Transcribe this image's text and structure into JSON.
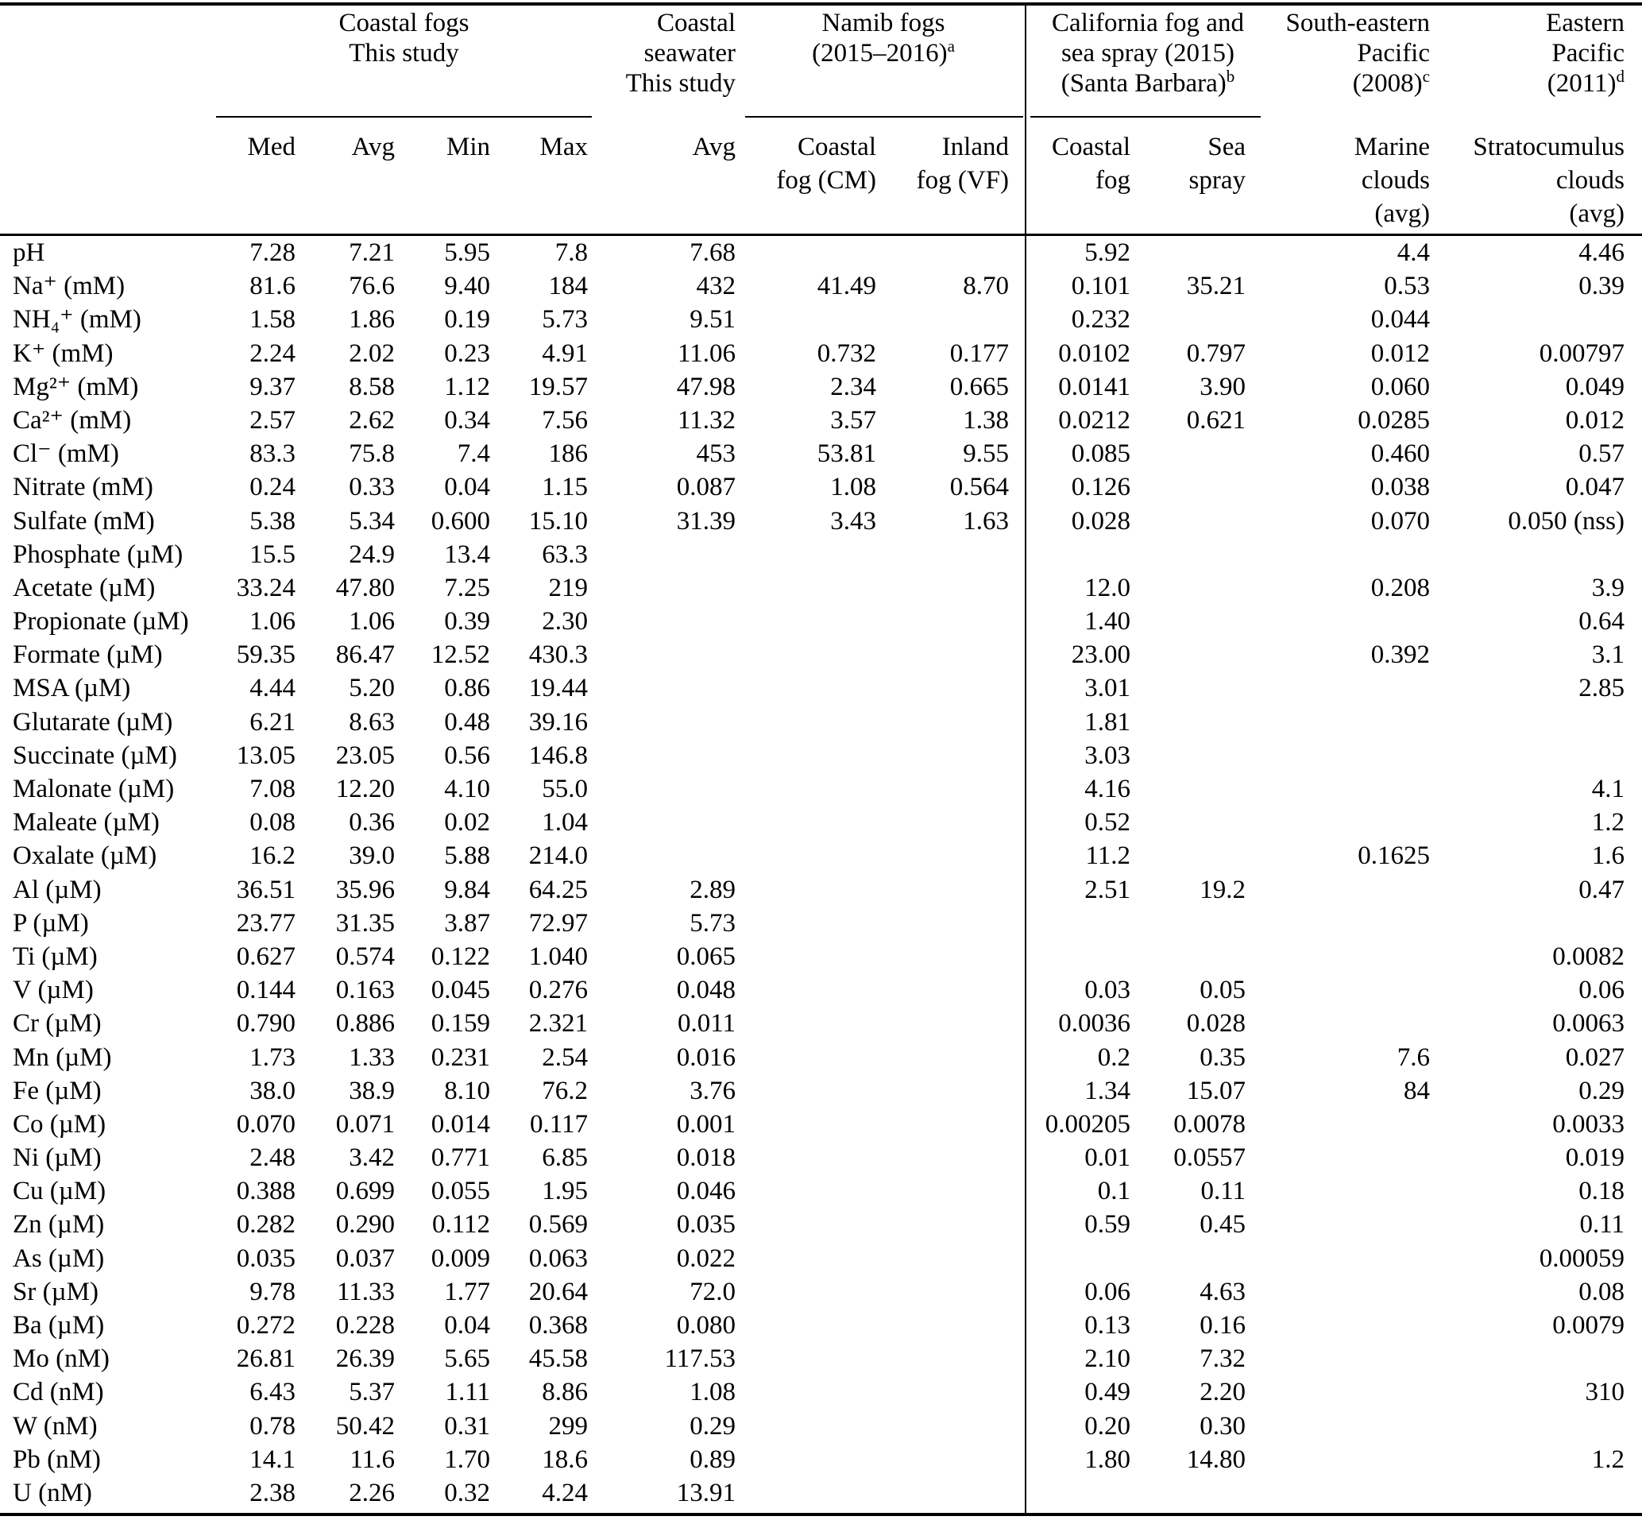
{
  "table": {
    "col_groups": [
      {
        "title": "Coastal fogs\nThis study",
        "mark": ""
      },
      {
        "title": "Coastal\nseawater\nThis study",
        "mark": ""
      },
      {
        "title": "Namib fogs\n(2015–2016)",
        "mark": "a"
      },
      {
        "title": "California fog and\nsea spray (2015)\n(Santa Barbara)",
        "mark": "b"
      },
      {
        "title": "South-eastern\nPacific\n(2008)",
        "mark": "c"
      },
      {
        "title": "Eastern\nPacific\n(2011)",
        "mark": "d"
      }
    ],
    "sub_headers": [
      "Med",
      "Avg",
      "Min",
      "Max",
      "Avg",
      "Coastal\nfog (CM)",
      "Inland\nfog (VF)",
      "Coastal\nfog",
      "Sea\nspray",
      "Marine\nclouds\n(avg)",
      "Stratocumulus\nclouds\n(avg)"
    ],
    "rows": [
      {
        "label": "pH",
        "cells": [
          "7.28",
          "7.21",
          "5.95",
          "7.8",
          "7.68",
          "",
          "",
          "5.92",
          "",
          "4.4",
          "4.46"
        ]
      },
      {
        "label": "Na⁺ (mM)",
        "cells": [
          "81.6",
          "76.6",
          "9.40",
          "184",
          "432",
          "41.49",
          "8.70",
          "0.101",
          "35.21",
          "0.53",
          "0.39"
        ]
      },
      {
        "label": "NH₄⁺ (mM)",
        "cells": [
          "1.58",
          "1.86",
          "0.19",
          "5.73",
          "9.51",
          "",
          "",
          "0.232",
          "",
          "0.044",
          ""
        ]
      },
      {
        "label": "K⁺ (mM)",
        "cells": [
          "2.24",
          "2.02",
          "0.23",
          "4.91",
          "11.06",
          "0.732",
          "0.177",
          "0.0102",
          "0.797",
          "0.012",
          "0.00797"
        ]
      },
      {
        "label": "Mg²⁺ (mM)",
        "cells": [
          "9.37",
          "8.58",
          "1.12",
          "19.57",
          "47.98",
          "2.34",
          "0.665",
          "0.0141",
          "3.90",
          "0.060",
          "0.049"
        ]
      },
      {
        "label": "Ca²⁺ (mM)",
        "cells": [
          "2.57",
          "2.62",
          "0.34",
          "7.56",
          "11.32",
          "3.57",
          "1.38",
          "0.0212",
          "0.621",
          "0.0285",
          "0.012"
        ]
      },
      {
        "label": "Cl⁻ (mM)",
        "cells": [
          "83.3",
          "75.8",
          "7.4",
          "186",
          "453",
          "53.81",
          "9.55",
          "0.085",
          "",
          "0.460",
          "0.57"
        ]
      },
      {
        "label": "Nitrate (mM)",
        "cells": [
          "0.24",
          "0.33",
          "0.04",
          "1.15",
          "0.087",
          "1.08",
          "0.564",
          "0.126",
          "",
          "0.038",
          "0.047"
        ]
      },
      {
        "label": "Sulfate (mM)",
        "cells": [
          "5.38",
          "5.34",
          "0.600",
          "15.10",
          "31.39",
          "3.43",
          "1.63",
          "0.028",
          "",
          "0.070",
          "0.050 (nss)"
        ]
      },
      {
        "label": "Phosphate (µM)",
        "cells": [
          "15.5",
          "24.9",
          "13.4",
          "63.3",
          "",
          "",
          "",
          "",
          "",
          "",
          ""
        ]
      },
      {
        "label": "Acetate (µM)",
        "cells": [
          "33.24",
          "47.80",
          "7.25",
          "219",
          "",
          "",
          "",
          "12.0",
          "",
          "0.208",
          "3.9"
        ]
      },
      {
        "label": "Propionate (µM)",
        "cells": [
          "1.06",
          "1.06",
          "0.39",
          "2.30",
          "",
          "",
          "",
          "1.40",
          "",
          "",
          "0.64"
        ]
      },
      {
        "label": "Formate (µM)",
        "cells": [
          "59.35",
          "86.47",
          "12.52",
          "430.3",
          "",
          "",
          "",
          "23.00",
          "",
          "0.392",
          "3.1"
        ]
      },
      {
        "label": "MSA (µM)",
        "cells": [
          "4.44",
          "5.20",
          "0.86",
          "19.44",
          "",
          "",
          "",
          "3.01",
          "",
          "",
          "2.85"
        ]
      },
      {
        "label": "Glutarate (µM)",
        "cells": [
          "6.21",
          "8.63",
          "0.48",
          "39.16",
          "",
          "",
          "",
          "1.81",
          "",
          "",
          ""
        ]
      },
      {
        "label": "Succinate (µM)",
        "cells": [
          "13.05",
          "23.05",
          "0.56",
          "146.8",
          "",
          "",
          "",
          "3.03",
          "",
          "",
          ""
        ]
      },
      {
        "label": "Malonate (µM)",
        "cells": [
          "7.08",
          "12.20",
          "4.10",
          "55.0",
          "",
          "",
          "",
          "4.16",
          "",
          "",
          "4.1"
        ]
      },
      {
        "label": "Maleate (µM)",
        "cells": [
          "0.08",
          "0.36",
          "0.02",
          "1.04",
          "",
          "",
          "",
          "0.52",
          "",
          "",
          "1.2"
        ]
      },
      {
        "label": "Oxalate (µM)",
        "cells": [
          "16.2",
          "39.0",
          "5.88",
          "214.0",
          "",
          "",
          "",
          "11.2",
          "",
          "0.1625",
          "1.6"
        ]
      },
      {
        "label": "Al (µM)",
        "cells": [
          "36.51",
          "35.96",
          "9.84",
          "64.25",
          "2.89",
          "",
          "",
          "2.51",
          "19.2",
          "",
          "0.47"
        ]
      },
      {
        "label": "P (µM)",
        "cells": [
          "23.77",
          "31.35",
          "3.87",
          "72.97",
          "5.73",
          "",
          "",
          "",
          "",
          "",
          ""
        ]
      },
      {
        "label": "Ti (µM)",
        "cells": [
          "0.627",
          "0.574",
          "0.122",
          "1.040",
          "0.065",
          "",
          "",
          "",
          "",
          "",
          "0.0082"
        ]
      },
      {
        "label": "V (µM)",
        "cells": [
          "0.144",
          "0.163",
          "0.045",
          "0.276",
          "0.048",
          "",
          "",
          "0.03",
          "0.05",
          "",
          "0.06"
        ]
      },
      {
        "label": "Cr (µM)",
        "cells": [
          "0.790",
          "0.886",
          "0.159",
          "2.321",
          "0.011",
          "",
          "",
          "0.0036",
          "0.028",
          "",
          "0.0063"
        ]
      },
      {
        "label": "Mn (µM)",
        "cells": [
          "1.73",
          "1.33",
          "0.231",
          "2.54",
          "0.016",
          "",
          "",
          "0.2",
          "0.35",
          "7.6",
          "0.027"
        ]
      },
      {
        "label": "Fe (µM)",
        "cells": [
          "38.0",
          "38.9",
          "8.10",
          "76.2",
          "3.76",
          "",
          "",
          "1.34",
          "15.07",
          "84",
          "0.29"
        ]
      },
      {
        "label": "Co (µM)",
        "cells": [
          "0.070",
          "0.071",
          "0.014",
          "0.117",
          "0.001",
          "",
          "",
          "0.00205",
          "0.0078",
          "",
          "0.0033"
        ]
      },
      {
        "label": "Ni (µM)",
        "cells": [
          "2.48",
          "3.42",
          "0.771",
          "6.85",
          "0.018",
          "",
          "",
          "0.01",
          "0.0557",
          "",
          "0.019"
        ]
      },
      {
        "label": "Cu (µM)",
        "cells": [
          "0.388",
          "0.699",
          "0.055",
          "1.95",
          "0.046",
          "",
          "",
          "0.1",
          "0.11",
          "",
          "0.18"
        ]
      },
      {
        "label": "Zn (µM)",
        "cells": [
          "0.282",
          "0.290",
          "0.112",
          "0.569",
          "0.035",
          "",
          "",
          "0.59",
          "0.45",
          "",
          "0.11"
        ]
      },
      {
        "label": "As (µM)",
        "cells": [
          "0.035",
          "0.037",
          "0.009",
          "0.063",
          "0.022",
          "",
          "",
          "",
          "",
          "",
          "0.00059"
        ]
      },
      {
        "label": "Sr (µM)",
        "cells": [
          "9.78",
          "11.33",
          "1.77",
          "20.64",
          "72.0",
          "",
          "",
          "0.06",
          "4.63",
          "",
          "0.08"
        ]
      },
      {
        "label": "Ba (µM)",
        "cells": [
          "0.272",
          "0.228",
          "0.04",
          "0.368",
          "0.080",
          "",
          "",
          "0.13",
          "0.16",
          "",
          "0.0079"
        ]
      },
      {
        "label": "Mo (nM)",
        "cells": [
          "26.81",
          "26.39",
          "5.65",
          "45.58",
          "117.53",
          "",
          "",
          "2.10",
          "7.32",
          "",
          ""
        ]
      },
      {
        "label": "Cd (nM)",
        "cells": [
          "6.43",
          "5.37",
          "1.11",
          "8.86",
          "1.08",
          "",
          "",
          "0.49",
          "2.20",
          "",
          "310"
        ]
      },
      {
        "label": "W (nM)",
        "cells": [
          "0.78",
          "50.42",
          "0.31",
          "299",
          "0.29",
          "",
          "",
          "0.20",
          "0.30",
          "",
          ""
        ]
      },
      {
        "label": "Pb (nM)",
        "cells": [
          "14.1",
          "11.6",
          "1.70",
          "18.6",
          "0.89",
          "",
          "",
          "1.80",
          "14.80",
          "",
          "1.2"
        ]
      },
      {
        "label": "U (nM)",
        "cells": [
          "2.38",
          "2.26",
          "0.32",
          "4.24",
          "13.91",
          "",
          "",
          "",
          "",
          "",
          ""
        ]
      }
    ]
  }
}
